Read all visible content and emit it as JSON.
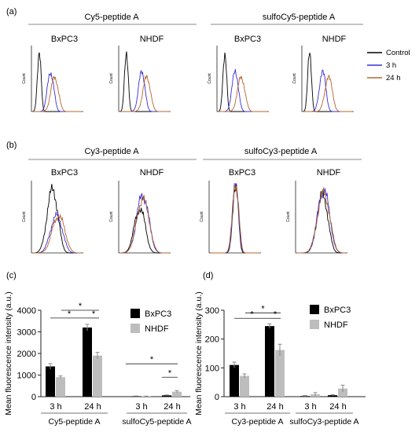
{
  "panels": {
    "a": {
      "tag": "(a)",
      "groups": [
        {
          "title": "Cy5-peptide A",
          "cells": [
            "BxPC3",
            "NHDF"
          ]
        },
        {
          "title": "sulfoCy5-peptide A",
          "cells": [
            "BxPC3",
            "NHDF"
          ]
        }
      ],
      "ylabel": "Count",
      "legend": [
        {
          "label": "Control",
          "color": "#000000"
        },
        {
          "label": "3 h",
          "color": "#3a2fd6"
        },
        {
          "label": "24 h",
          "color": "#b5652e"
        }
      ]
    },
    "b": {
      "tag": "(b)",
      "groups": [
        {
          "title": "Cy3-peptide A",
          "cells": [
            "BxPC3",
            "NHDF"
          ]
        },
        {
          "title": "sulfoCy3-peptide A",
          "cells": [
            "BxPC3",
            "NHDF"
          ]
        }
      ],
      "ylabel": "Count"
    },
    "c": {
      "tag": "(c)"
    },
    "d": {
      "tag": "(d)"
    }
  },
  "colors": {
    "control": "#000000",
    "h3": "#3a2fd6",
    "h24": "#b5652e",
    "bxpc3": "#000000",
    "nhdf": "#bdbdbd"
  },
  "chart_data": [
    {
      "type": "bar",
      "panel": "c",
      "ylabel": "Mean fluorescence intensity (a.u.)",
      "ylim": [
        0,
        4000
      ],
      "yticks": [
        0,
        1000,
        2000,
        3000,
        4000
      ],
      "categories": [
        "3 h",
        "24 h",
        "3 h",
        "24 h"
      ],
      "groups": [
        "Cy5-peptide A",
        "sulfoCy5-peptide A"
      ],
      "series": [
        {
          "name": "BxPC3",
          "values": [
            1400,
            3200,
            20,
            60
          ],
          "errors": [
            130,
            150,
            10,
            20
          ]
        },
        {
          "name": "NHDF",
          "values": [
            900,
            1900,
            15,
            230
          ],
          "errors": [
            60,
            150,
            10,
            50
          ]
        }
      ],
      "significance": [
        "*",
        "*",
        "*",
        "*",
        "*"
      ]
    },
    {
      "type": "bar",
      "panel": "d",
      "ylabel": "Mean fluorescence intensity (a.u.)",
      "ylim": [
        0,
        300
      ],
      "yticks": [
        0,
        100,
        200,
        300
      ],
      "categories": [
        "3 h",
        "24 h",
        "3 h",
        "24 h"
      ],
      "groups": [
        "Cy3-peptide A",
        "sulfoCy3-peptide A"
      ],
      "series": [
        {
          "name": "BxPC3",
          "values": [
            110,
            245,
            2,
            5
          ],
          "errors": [
            10,
            8,
            2,
            2
          ]
        },
        {
          "name": "NHDF",
          "values": [
            72,
            162,
            8,
            28
          ],
          "errors": [
            7,
            20,
            6,
            12
          ]
        }
      ],
      "significance": [
        "*",
        "*",
        "*"
      ]
    }
  ]
}
